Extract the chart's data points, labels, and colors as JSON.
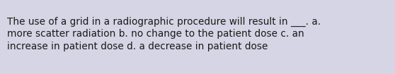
{
  "text": "The use of a grid in a radiographic procedure will result in ___. a.\nmore scatter radiation b. no change to the patient dose c. an\nincrease in patient dose d. a decrease in patient dose",
  "background_color": "#d5d5e5",
  "text_color": "#1a1a1a",
  "font_size": 9.8,
  "fig_width": 5.58,
  "fig_height": 1.05,
  "dpi": 100
}
